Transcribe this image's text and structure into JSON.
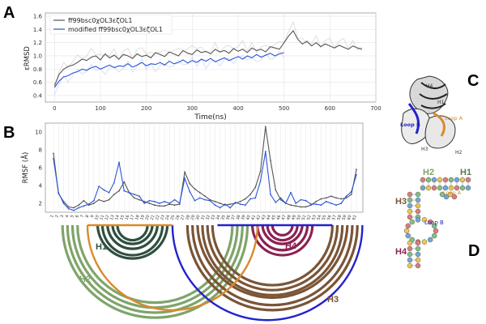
{
  "panels": {
    "a": "A",
    "b": "B",
    "c": "C",
    "d": "D"
  },
  "colors": {
    "gray": "#555555",
    "blue": "#2b55d6",
    "h1": "#2f4f3f",
    "h2": "#7fa46a",
    "h3": "#7a5536",
    "h4": "#8b2252",
    "orange": "#d98a2c",
    "loop_blue": "#2222cc"
  },
  "chart_data": [
    {
      "type": "line",
      "ylabel": "εRMSD",
      "xlabel": "Time(ns)",
      "xlim": [
        -20,
        700
      ],
      "ylim": [
        0.3,
        1.65
      ],
      "xticks": [
        0,
        100,
        200,
        300,
        400,
        500,
        600,
        700
      ],
      "yticks": [
        0.4,
        0.6,
        0.8,
        1.0,
        1.2,
        1.4,
        1.6
      ],
      "grid": true,
      "legend_position": "top-left",
      "series": [
        {
          "name": "ff99bsc0χOL3εζOL1",
          "color": "#555555",
          "x": [
            0,
            10,
            20,
            30,
            40,
            50,
            60,
            70,
            80,
            90,
            100,
            110,
            120,
            130,
            140,
            150,
            160,
            170,
            180,
            190,
            200,
            210,
            220,
            230,
            240,
            250,
            260,
            270,
            280,
            290,
            300,
            310,
            320,
            330,
            340,
            350,
            360,
            370,
            380,
            390,
            400,
            410,
            420,
            430,
            440,
            450,
            460,
            470,
            480,
            490,
            500,
            510,
            520,
            530,
            540,
            550,
            560,
            570,
            580,
            590,
            600,
            610,
            620,
            630,
            640,
            650,
            660,
            670
          ],
          "y": [
            0.55,
            0.72,
            0.8,
            0.84,
            0.86,
            0.9,
            0.95,
            0.93,
            0.98,
            1.0,
            0.94,
            1.03,
            0.97,
            1.01,
            0.95,
            1.02,
            1.0,
            0.96,
            1.03,
            0.99,
            1.01,
            0.97,
            1.05,
            1.02,
            0.99,
            1.06,
            1.03,
            1.0,
            1.08,
            1.04,
            1.02,
            1.09,
            1.05,
            1.07,
            1.03,
            1.1,
            1.06,
            1.08,
            1.04,
            1.11,
            1.07,
            1.1,
            1.05,
            1.12,
            1.08,
            1.1,
            1.06,
            1.14,
            1.12,
            1.1,
            1.2,
            1.3,
            1.38,
            1.25,
            1.18,
            1.22,
            1.15,
            1.2,
            1.14,
            1.18,
            1.15,
            1.12,
            1.16,
            1.13,
            1.1,
            1.15,
            1.12,
            1.1
          ]
        },
        {
          "name": "modified ff99bsc0χOL3εζOL1",
          "color": "#2b55d6",
          "x": [
            0,
            10,
            20,
            30,
            40,
            50,
            60,
            70,
            80,
            90,
            100,
            110,
            120,
            130,
            140,
            150,
            160,
            170,
            180,
            190,
            200,
            210,
            220,
            230,
            240,
            250,
            260,
            270,
            280,
            290,
            300,
            310,
            320,
            330,
            340,
            350,
            360,
            370,
            380,
            390,
            400,
            410,
            420,
            430,
            440,
            450,
            460,
            470,
            480,
            490,
            500
          ],
          "y": [
            0.52,
            0.62,
            0.68,
            0.7,
            0.74,
            0.76,
            0.8,
            0.78,
            0.82,
            0.84,
            0.8,
            0.83,
            0.86,
            0.82,
            0.85,
            0.84,
            0.88,
            0.83,
            0.86,
            0.9,
            0.85,
            0.88,
            0.87,
            0.9,
            0.86,
            0.92,
            0.88,
            0.9,
            0.94,
            0.89,
            0.93,
            0.9,
            0.95,
            0.92,
            0.96,
            0.91,
            0.94,
            0.97,
            0.93,
            0.96,
            0.99,
            0.95,
            1.0,
            0.97,
            1.02,
            0.98,
            1.01,
            1.04,
            1.0,
            1.03,
            1.05
          ]
        }
      ]
    },
    {
      "type": "line",
      "ylabel": "RMSF (Å)",
      "ylim": [
        1,
        11
      ],
      "yticks": [
        2,
        4,
        6,
        8,
        10
      ],
      "grid": true,
      "categories": [
        "1",
        "2",
        "3",
        "4",
        "5",
        "6",
        "7",
        "8",
        "9",
        "10",
        "11",
        "12",
        "13",
        "14",
        "15",
        "16",
        "17",
        "18",
        "19",
        "20",
        "21",
        "22",
        "23",
        "24",
        "25",
        "26",
        "27",
        "28",
        "29",
        "30",
        "31",
        "32",
        "33",
        "34",
        "35",
        "36",
        "37",
        "38",
        "39",
        "40",
        "41",
        "42",
        "43",
        "44",
        "45",
        "46",
        "47",
        "48",
        "49",
        "50",
        "51",
        "52",
        "53",
        "54",
        "55",
        "56",
        "57",
        "58",
        "59",
        "60",
        "61"
      ],
      "series": [
        {
          "name": "ff99bsc0χOL3εζOL1",
          "color": "#555555",
          "values": [
            7.6,
            3.1,
            2.2,
            1.6,
            1.5,
            1.8,
            2.3,
            1.8,
            2.0,
            2.4,
            2.2,
            2.4,
            3.0,
            3.4,
            4.4,
            3.2,
            2.6,
            2.4,
            2.2,
            2.0,
            1.8,
            1.7,
            1.7,
            1.9,
            1.8,
            1.9,
            5.5,
            4.2,
            3.6,
            3.2,
            2.8,
            2.4,
            2.2,
            2.0,
            1.8,
            1.9,
            2.0,
            2.2,
            2.5,
            3.0,
            3.8,
            5.6,
            10.6,
            6.8,
            3.5,
            2.4,
            2.0,
            1.8,
            1.7,
            1.6,
            1.6,
            1.8,
            2.2,
            2.5,
            2.6,
            2.8,
            2.6,
            2.5,
            2.6,
            3.0,
            5.8
          ]
        },
        {
          "name": "modified ff99bsc0χOL3εζOL1",
          "color": "#2b55d6",
          "values": [
            7.0,
            3.2,
            2.0,
            1.4,
            1.2,
            1.5,
            1.7,
            1.9,
            2.3,
            3.9,
            3.5,
            3.2,
            4.3,
            6.6,
            3.4,
            3.2,
            3.0,
            2.8,
            2.0,
            2.3,
            2.2,
            2.0,
            2.2,
            2.0,
            2.4,
            2.0,
            4.8,
            3.3,
            2.3,
            2.6,
            2.4,
            2.3,
            1.8,
            1.5,
            1.9,
            1.5,
            2.1,
            1.9,
            1.8,
            2.5,
            2.6,
            4.5,
            7.8,
            3.0,
            2.1,
            2.6,
            2.0,
            3.2,
            2.0,
            2.4,
            2.3,
            1.9,
            1.9,
            1.8,
            2.2,
            2.0,
            1.8,
            2.0,
            2.8,
            3.3,
            5.2
          ]
        }
      ]
    }
  ],
  "arcs": {
    "labels": {
      "h1": "H1",
      "h2": "H2",
      "h3": "H3",
      "h4": "H4"
    },
    "x_first": 71,
    "x_step": 6.17,
    "baseline_y": 278,
    "groups": [
      {
        "name": "H1",
        "color": "#2f4f3f",
        "pairs": [
          [
            9,
            23
          ],
          [
            10,
            22
          ],
          [
            11,
            21
          ],
          [
            12,
            20
          ],
          [
            13,
            19
          ]
        ]
      },
      {
        "name": "H2",
        "color": "#7fa46a",
        "pairs": [
          [
            2,
            39
          ],
          [
            3,
            38
          ],
          [
            4,
            37
          ],
          [
            5,
            36
          ]
        ]
      },
      {
        "name": "H3",
        "color": "#7a5536",
        "pairs": [
          [
            27,
            61
          ],
          [
            28,
            60
          ],
          [
            29,
            59
          ],
          [
            30,
            58
          ],
          [
            31,
            57
          ],
          [
            32,
            56
          ]
        ]
      },
      {
        "name": "H4",
        "color": "#8b2252",
        "pairs": [
          [
            40,
            52
          ],
          [
            41,
            51
          ],
          [
            42,
            50
          ],
          [
            43,
            49
          ],
          [
            44,
            48
          ]
        ]
      },
      {
        "name": "loopA",
        "color": "#d98a2c",
        "pairs": [
          [
            7,
            41
          ]
        ]
      },
      {
        "name": "loopB",
        "color": "#2222cc",
        "pairs": [
          [
            24,
            62
          ]
        ]
      }
    ]
  },
  "structure": {
    "c_labels": {
      "h4": "H4",
      "h1": "H1",
      "loop_a": "Loop A",
      "loop_b": "Loop B",
      "h3": "H3",
      "h2": "H2"
    },
    "d_labels": {
      "h2": "H2",
      "h1": "H1",
      "h3": "H3",
      "h4": "H4",
      "loop_b": "Loop B",
      "loop_a": "Loop A"
    }
  }
}
